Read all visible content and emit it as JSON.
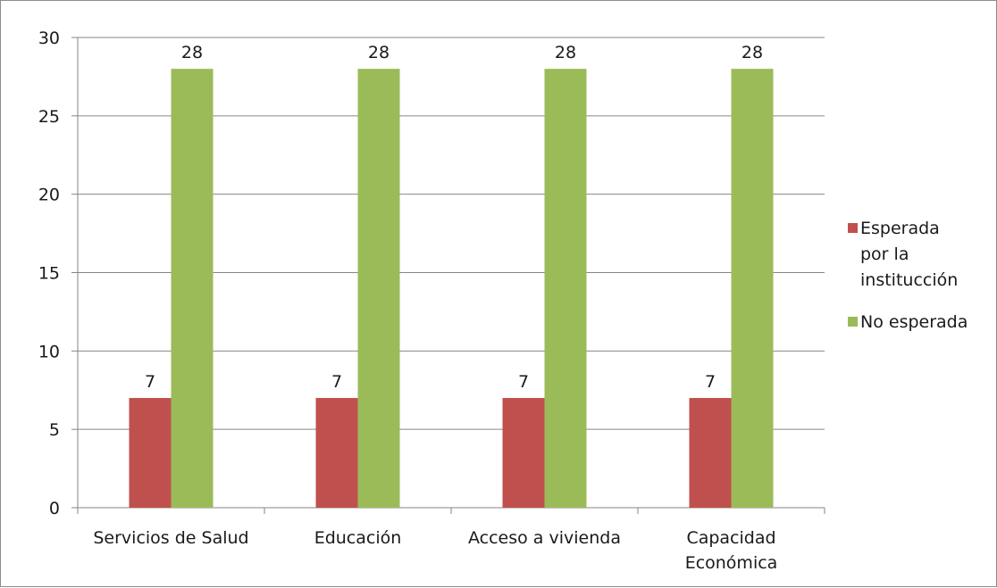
{
  "chart_data": {
    "type": "bar",
    "categories": [
      [
        "Servicios de Salud"
      ],
      [
        "Educación"
      ],
      [
        "Acceso a vivienda"
      ],
      [
        "Capacidad",
        "Económica"
      ]
    ],
    "series": [
      {
        "name": [
          "Esperada",
          "por la",
          "institucción"
        ],
        "color": "#c0504d",
        "values": [
          7,
          7,
          7,
          7
        ]
      },
      {
        "name": [
          "No esperada"
        ],
        "color": "#9bbb59",
        "values": [
          28,
          28,
          28,
          28
        ]
      }
    ],
    "ylim": [
      0,
      30
    ],
    "yticks": [
      0,
      5,
      10,
      15,
      20,
      25,
      30
    ],
    "grid": true,
    "legend": "right",
    "data_labels": true
  }
}
